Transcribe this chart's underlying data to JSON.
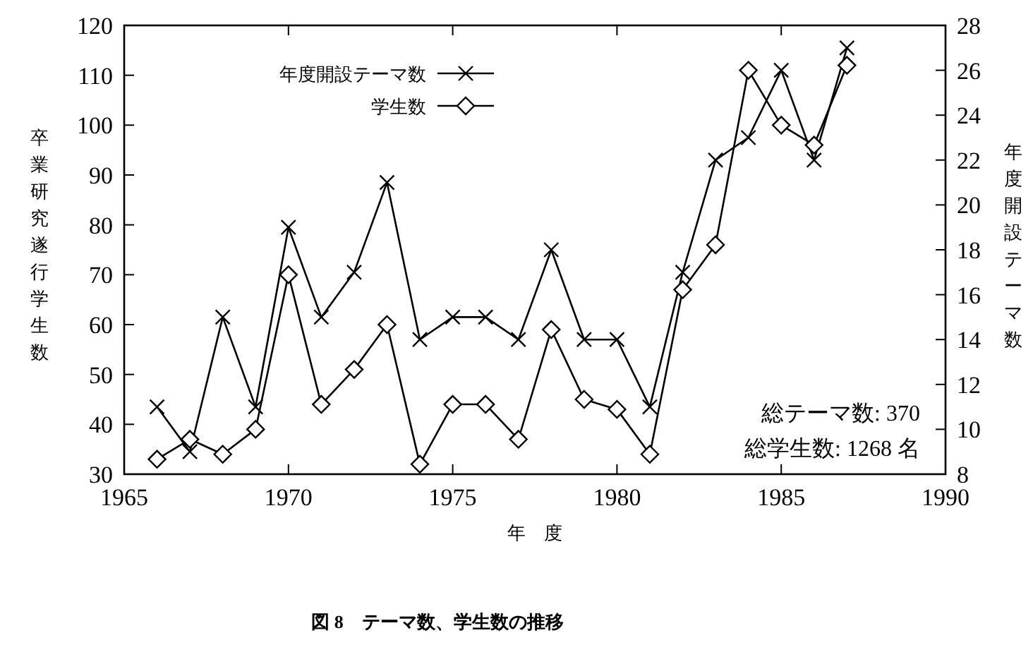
{
  "chart_data": {
    "type": "line",
    "title": "図 8　テーマ数、学生数の推移",
    "xlabel": "年　度",
    "ylabel": "卒業研究遂行学生数",
    "y2label": "年度開設テーマ数",
    "x": [
      1966,
      1967,
      1968,
      1969,
      1970,
      1971,
      1972,
      1973,
      1974,
      1975,
      1976,
      1977,
      1978,
      1979,
      1980,
      1981,
      1982,
      1983,
      1984,
      1985,
      1986,
      1987
    ],
    "series": [
      {
        "name": "年度開設テーマ数",
        "color": "#000000",
        "marker": "cross",
        "axis": "y2",
        "values": [
          11,
          9,
          15,
          11,
          19,
          15,
          17,
          21,
          14,
          15,
          15,
          14,
          18,
          14,
          14,
          11,
          17,
          22,
          23,
          26,
          22,
          27
        ]
      },
      {
        "name": "学生数",
        "color": "#000000",
        "marker": "diamond",
        "values": [
          33,
          37,
          34,
          39,
          70,
          44,
          51,
          60,
          32,
          44,
          44,
          37,
          59,
          45,
          43,
          34,
          67,
          76,
          111,
          100,
          96,
          112
        ]
      }
    ],
    "xlim": [
      1965,
      1990
    ],
    "xticks": [
      1965,
      1970,
      1975,
      1980,
      1985,
      1990
    ],
    "ylim": [
      30,
      120
    ],
    "yticks": [
      30,
      40,
      50,
      60,
      70,
      80,
      90,
      100,
      110,
      120
    ],
    "y2lim": [
      8,
      28
    ],
    "y2ticks": [
      8,
      10,
      12,
      14,
      16,
      18,
      20,
      22,
      24,
      26,
      28
    ],
    "legend": "top",
    "grid": false,
    "line_style": "solid",
    "annotations": [
      "総テーマ数: 370",
      "総学生数: 1268 名"
    ]
  }
}
